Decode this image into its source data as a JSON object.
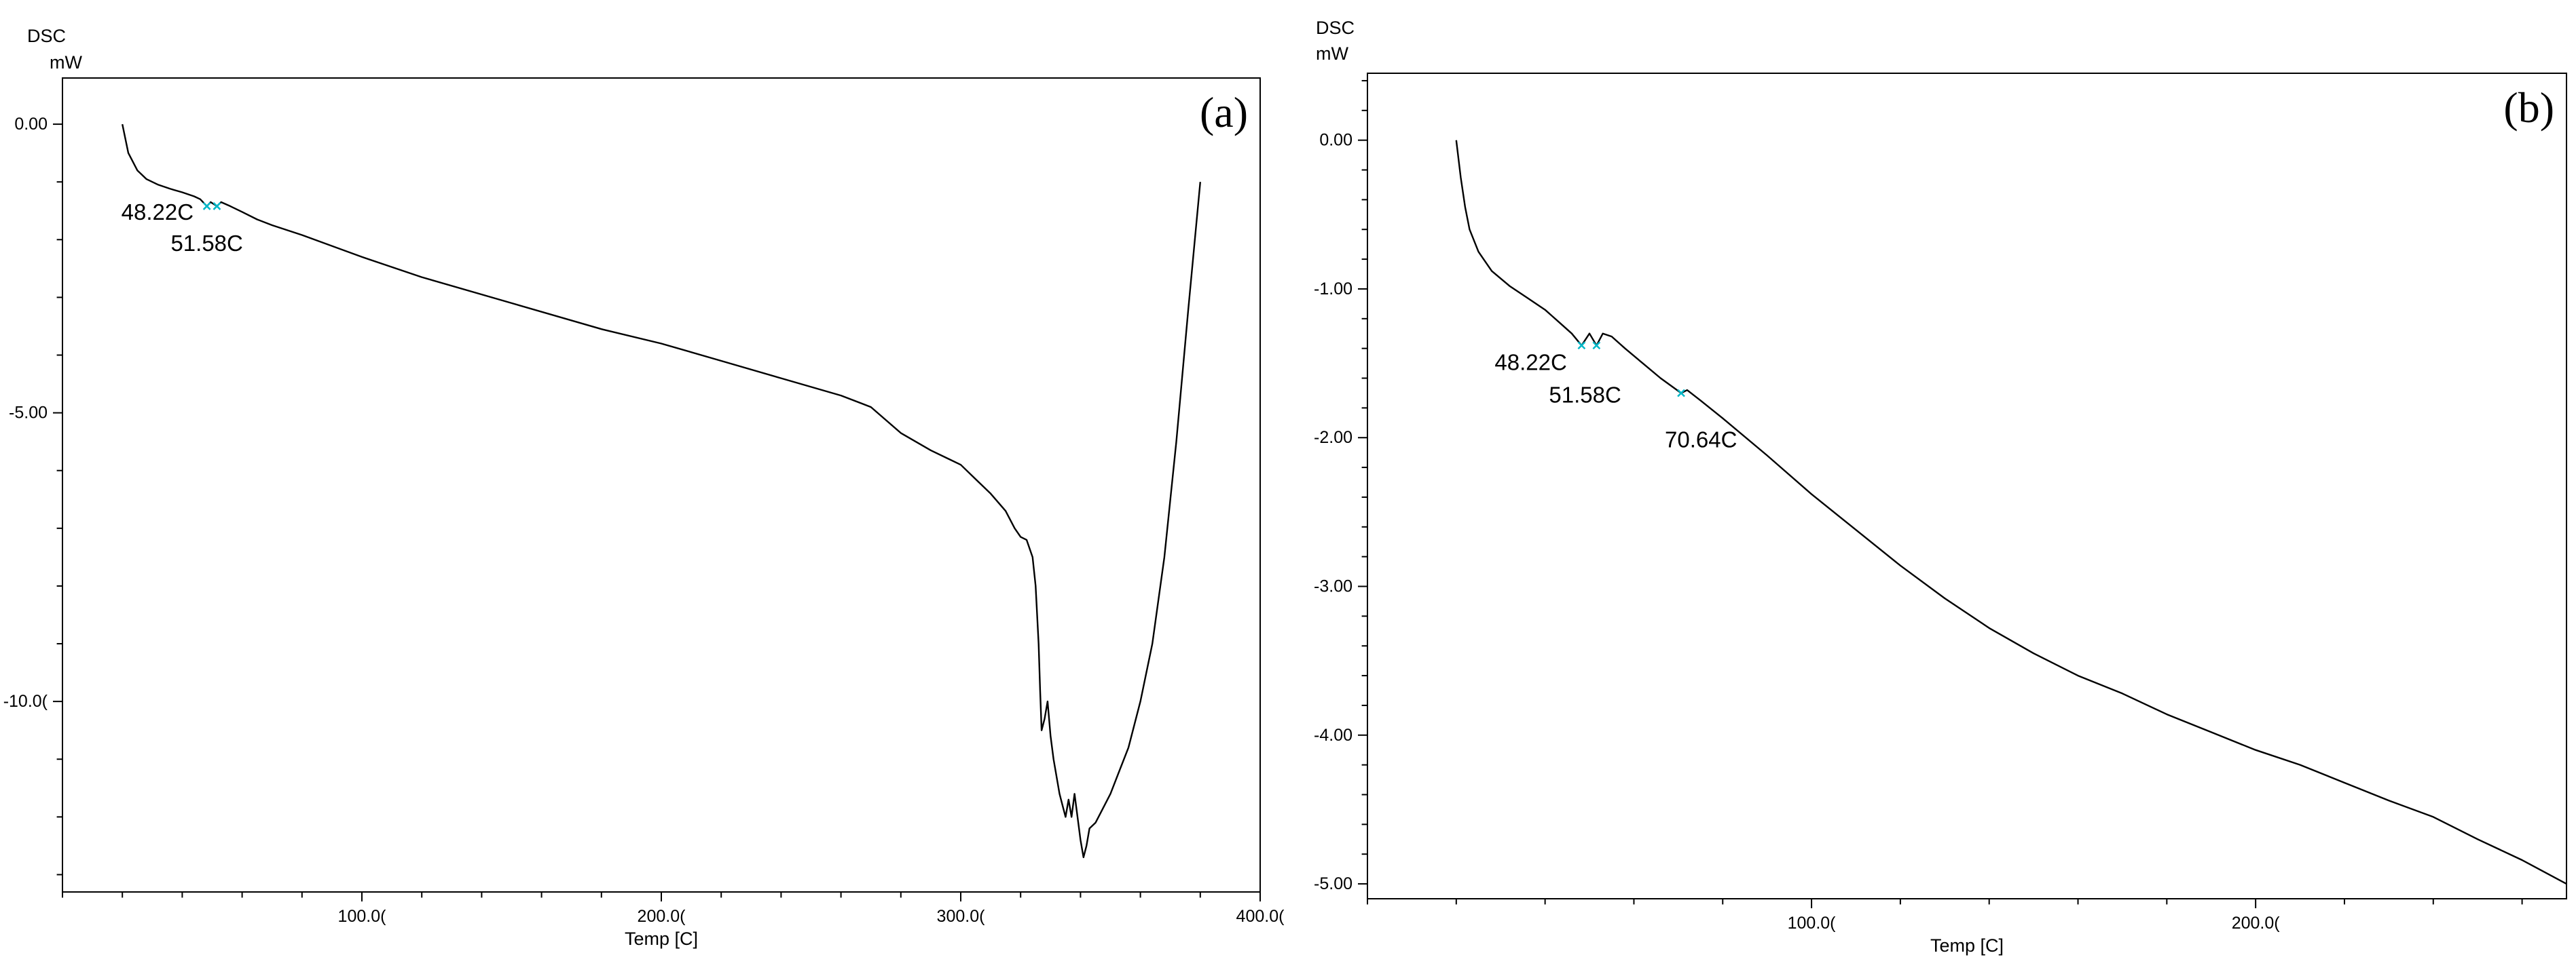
{
  "chart_data": [
    {
      "type": "line",
      "panel_label": "(a)",
      "ylabel_line1": "DSC",
      "ylabel_line2": "mW",
      "xlabel": "Temp  [C]",
      "xlim": [
        0,
        400
      ],
      "ylim": [
        -13.3,
        0.8
      ],
      "x_ticks": [
        100,
        200,
        300,
        400
      ],
      "x_tick_labels": [
        "100.0(",
        "200.0(",
        "300.0(",
        "400.0("
      ],
      "y_ticks": [
        0,
        -5,
        -10
      ],
      "y_tick_labels": [
        "0.00",
        "-5.00",
        "-10.0("
      ],
      "series": [
        {
          "x": [
            20,
            22,
            25,
            28,
            32,
            36,
            40,
            44,
            46,
            48.22,
            49.5,
            51.58,
            53,
            56,
            60,
            65,
            70,
            80,
            100,
            120,
            150,
            180,
            200,
            220,
            240,
            260,
            270,
            280,
            290,
            300,
            305,
            310,
            315,
            318,
            320,
            322,
            324,
            325,
            326,
            326.5,
            327,
            328,
            329,
            330,
            331,
            332,
            333,
            334,
            335,
            336,
            337,
            338,
            339,
            340,
            341,
            342,
            343,
            345,
            347,
            350,
            353,
            356,
            360,
            364,
            368,
            372,
            376,
            380
          ],
          "y": [
            0,
            -0.5,
            -0.8,
            -0.95,
            -1.05,
            -1.12,
            -1.18,
            -1.25,
            -1.3,
            -1.42,
            -1.35,
            -1.42,
            -1.35,
            -1.42,
            -1.52,
            -1.65,
            -1.75,
            -1.92,
            -2.3,
            -2.65,
            -3.1,
            -3.55,
            -3.8,
            -4.1,
            -4.4,
            -4.7,
            -4.9,
            -5.35,
            -5.65,
            -5.9,
            -6.15,
            -6.4,
            -6.7,
            -7.0,
            -7.15,
            -7.2,
            -7.5,
            -8.0,
            -9.0,
            -9.8,
            -10.5,
            -10.3,
            -10.0,
            -10.6,
            -11.0,
            -11.3,
            -11.6,
            -11.8,
            -12.0,
            -11.7,
            -12.0,
            -11.6,
            -12.0,
            -12.4,
            -12.7,
            -12.5,
            -12.2,
            -12.1,
            -11.9,
            -11.6,
            -11.2,
            -10.8,
            -10.0,
            -9.0,
            -7.5,
            -5.5,
            -3.2,
            -1.0
          ]
        }
      ],
      "annotations": [
        {
          "text": "48.22C",
          "x": 48.22,
          "y": -1.42
        },
        {
          "text": "51.58C",
          "x": 51.58,
          "y": -1.42
        }
      ],
      "grid": false
    },
    {
      "type": "line",
      "panel_label": "(b)",
      "ylabel_line1": "DSC",
      "ylabel_line2": "mW",
      "xlabel": "Temp  [C]",
      "xlim": [
        0,
        270
      ],
      "ylim": [
        -5.1,
        0.45
      ],
      "x_ticks": [
        100,
        200
      ],
      "x_tick_labels": [
        "100.0(",
        "200.0("
      ],
      "y_ticks": [
        0,
        -1,
        -2,
        -3,
        -4,
        -5
      ],
      "y_tick_labels": [
        "0.00",
        "-1.00",
        "-2.00",
        "-3.00",
        "-4.00",
        "-5.00"
      ],
      "series": [
        {
          "x": [
            20,
            21,
            22,
            23,
            25,
            28,
            32,
            36,
            40,
            43,
            46,
            48.22,
            50,
            51.58,
            53,
            55,
            58,
            62,
            66,
            70.64,
            72,
            75,
            80,
            90,
            100,
            110,
            120,
            130,
            140,
            150,
            160,
            170,
            180,
            190,
            200,
            210,
            220,
            230,
            240,
            250,
            260,
            270
          ],
          "y": [
            0,
            -0.25,
            -0.45,
            -0.6,
            -0.75,
            -0.88,
            -0.98,
            -1.06,
            -1.14,
            -1.22,
            -1.3,
            -1.38,
            -1.3,
            -1.38,
            -1.3,
            -1.32,
            -1.4,
            -1.5,
            -1.6,
            -1.7,
            -1.68,
            -1.75,
            -1.87,
            -2.12,
            -2.38,
            -2.62,
            -2.86,
            -3.08,
            -3.28,
            -3.45,
            -3.6,
            -3.72,
            -3.86,
            -3.98,
            -4.1,
            -4.2,
            -4.32,
            -4.44,
            -4.55,
            -4.7,
            -4.84,
            -5.0
          ]
        }
      ],
      "annotations": [
        {
          "text": "48.22C",
          "x": 48.22,
          "y": -1.38
        },
        {
          "text": "51.58C",
          "x": 51.58,
          "y": -1.38
        },
        {
          "text": "70.64C",
          "x": 70.64,
          "y": -1.7
        }
      ],
      "grid": false
    }
  ]
}
